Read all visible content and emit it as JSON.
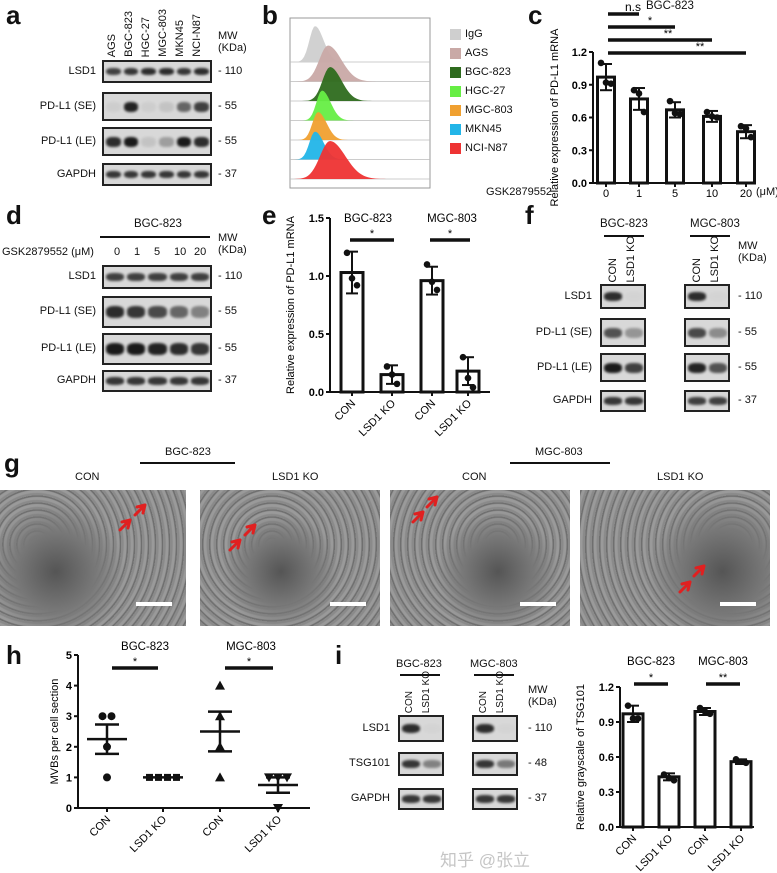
{
  "panel_labels": {
    "a": "a",
    "b": "b",
    "c": "c",
    "d": "d",
    "e": "e",
    "f": "f",
    "g": "g",
    "h": "h",
    "i": "i"
  },
  "panel_a": {
    "lanes": [
      "AGS",
      "BGC-823",
      "HGC-27",
      "MGC-803",
      "MKN45",
      "NCI-N87"
    ],
    "mw_header": "MW\n(KDa)",
    "rows": [
      {
        "label": "LSD1",
        "mw": "110",
        "intensity": [
          0.8,
          0.85,
          0.9,
          0.9,
          0.85,
          0.9
        ]
      },
      {
        "label": "PD-L1 (SE)",
        "mw": "55",
        "intensity": [
          0.05,
          0.95,
          0.05,
          0.1,
          0.6,
          0.8
        ]
      },
      {
        "label": "PD-L1 (LE)",
        "mw": "55",
        "intensity": [
          0.9,
          1,
          0.1,
          0.3,
          1,
          0.9
        ]
      },
      {
        "label": "GAPDH",
        "mw": "37",
        "intensity": [
          0.85,
          0.85,
          0.85,
          0.85,
          0.85,
          0.85
        ]
      }
    ]
  },
  "panel_b": {
    "legend": [
      {
        "label": "IgG",
        "color": "#cfcfcf"
      },
      {
        "label": "AGS",
        "color": "#c9a9a6"
      },
      {
        "label": "BGC-823",
        "color": "#2e6b1e"
      },
      {
        "label": "HGC-27",
        "color": "#66ee44"
      },
      {
        "label": "MGC-803",
        "color": "#f0a030"
      },
      {
        "label": "MKN45",
        "color": "#22b5e8"
      },
      {
        "label": "NCI-N87",
        "color": "#ee3333"
      }
    ]
  },
  "panel_c": {
    "title": "BGC-823",
    "ylabel": "Relative expression of\nPD-L1 mRNA",
    "xlabel": "GSK2879552",
    "unit": "(μM)"
  },
  "panel_d": {
    "title": "BGC-823",
    "treatment": "GSK2879552 (μM)",
    "lanes": [
      "0",
      "1",
      "5",
      "10",
      "20"
    ],
    "mw_header": "MW\n(KDa)",
    "rows": [
      {
        "label": "LSD1",
        "mw": "110",
        "intensity": [
          0.8,
          0.8,
          0.8,
          0.8,
          0.8
        ]
      },
      {
        "label": "PD-L1 (SE)",
        "mw": "55",
        "intensity": [
          0.9,
          0.85,
          0.75,
          0.6,
          0.45
        ]
      },
      {
        "label": "PD-L1 (LE)",
        "mw": "55",
        "intensity": [
          1,
          1,
          0.95,
          0.9,
          0.85
        ]
      },
      {
        "label": "GAPDH",
        "mw": "37",
        "intensity": [
          0.85,
          0.85,
          0.85,
          0.85,
          0.85
        ]
      }
    ]
  },
  "panel_f": {
    "groups": [
      "BGC-823",
      "MGC-803"
    ],
    "lanes": [
      "CON",
      "LSD1 KO"
    ],
    "mw_header": "MW\n(KDa)",
    "rows": [
      {
        "label": "LSD1",
        "mw": "110",
        "intensity": [
          0.9,
          0.02,
          0.9,
          0.02
        ]
      },
      {
        "label": "PD-L1 (SE)",
        "mw": "55",
        "intensity": [
          0.7,
          0.35,
          0.75,
          0.4
        ]
      },
      {
        "label": "PD-L1 (LE)",
        "mw": "55",
        "intensity": [
          1,
          0.8,
          0.95,
          0.7
        ]
      },
      {
        "label": "GAPDH",
        "mw": "37",
        "intensity": [
          0.85,
          0.85,
          0.8,
          0.8
        ]
      }
    ]
  },
  "panel_g": {
    "groups": [
      "BGC-823",
      "MGC-803"
    ],
    "images": [
      "CON",
      "LSD1 KO",
      "CON",
      "LSD1 KO"
    ]
  },
  "panel_i": {
    "groups": [
      "BGC-823",
      "MGC-803"
    ],
    "lanes": [
      "CON",
      "LSD1 KO"
    ],
    "mw_header": "MW\n(KDa)",
    "rows": [
      {
        "label": "LSD1",
        "mw": "110",
        "intensity": [
          0.9,
          0.02,
          0.9,
          0.02
        ]
      },
      {
        "label": "TSG101",
        "mw": "48",
        "intensity": [
          0.85,
          0.45,
          0.85,
          0.5
        ]
      },
      {
        "label": "GAPDH",
        "mw": "37",
        "intensity": [
          0.85,
          0.85,
          0.85,
          0.85
        ]
      }
    ]
  },
  "watermark": "知乎 @张立",
  "chart_data": [
    {
      "id": "c",
      "type": "bar",
      "title": "BGC-823",
      "xlabel": "GSK2879552 (μM)",
      "ylabel": "Relative expression of PD-L1 mRNA",
      "categories": [
        "0",
        "1",
        "5",
        "10",
        "20"
      ],
      "values": [
        0.97,
        0.77,
        0.67,
        0.61,
        0.47
      ],
      "errors": [
        0.12,
        0.1,
        0.07,
        0.05,
        0.06
      ],
      "points": [
        [
          1.1,
          0.92,
          0.91
        ],
        [
          0.85,
          0.82,
          0.65
        ],
        [
          0.75,
          0.64,
          0.63
        ],
        [
          0.65,
          0.61,
          0.6
        ],
        [
          0.52,
          0.5,
          0.42
        ]
      ],
      "ylim": [
        0,
        1.2
      ],
      "yticks": [
        "0.0",
        "0.3",
        "0.6",
        "0.9",
        "1.2"
      ],
      "significance": [
        {
          "from": 0,
          "to": 1,
          "label": "n.s"
        },
        {
          "from": 0,
          "to": 2,
          "label": "*"
        },
        {
          "from": 0,
          "to": 3,
          "label": "**"
        },
        {
          "from": 0,
          "to": 4,
          "label": "**"
        }
      ]
    },
    {
      "id": "e",
      "type": "bar",
      "ylabel": "Relative expression of PD-L1 mRNA",
      "groups": [
        "BGC-823",
        "MGC-803"
      ],
      "categories": [
        "CON",
        "LSD1 KO",
        "CON",
        "LSD1 KO"
      ],
      "values": [
        1.03,
        0.15,
        0.96,
        0.18
      ],
      "errors": [
        0.18,
        0.08,
        0.12,
        0.12
      ],
      "points": [
        [
          1.2,
          0.98,
          0.92
        ],
        [
          0.22,
          0.15,
          0.07
        ],
        [
          1.1,
          0.95,
          0.88
        ],
        [
          0.3,
          0.12,
          0.04
        ]
      ],
      "ylim": [
        0,
        1.5
      ],
      "yticks": [
        "0.0",
        "0.5",
        "1.0",
        "1.5"
      ],
      "significance": [
        {
          "from": 0,
          "to": 1,
          "label": "*"
        },
        {
          "from": 2,
          "to": 3,
          "label": "*"
        }
      ]
    },
    {
      "id": "h",
      "type": "scatter",
      "ylabel": "MVBs per cell section",
      "groups": [
        "BGC-823",
        "MGC-803"
      ],
      "categories": [
        "CON",
        "LSD1 KO",
        "CON",
        "LSD1 KO"
      ],
      "means": [
        2.25,
        1.0,
        2.5,
        0.75
      ],
      "sem": [
        0.48,
        0,
        0.65,
        0.25
      ],
      "points": [
        [
          3,
          3,
          2,
          1
        ],
        [
          1,
          1,
          1,
          1
        ],
        [
          4,
          3,
          2,
          1
        ],
        [
          1,
          1,
          1,
          0
        ]
      ],
      "markers": [
        "circle",
        "square",
        "triangle",
        "triangle-down"
      ],
      "ylim": [
        0,
        5
      ],
      "yticks": [
        "0",
        "1",
        "2",
        "3",
        "4",
        "5"
      ],
      "significance": [
        {
          "from": 0,
          "to": 1,
          "label": "*"
        },
        {
          "from": 2,
          "to": 3,
          "label": "*"
        }
      ]
    },
    {
      "id": "i",
      "type": "bar",
      "ylabel": "Relative grayscale of TSG101",
      "groups": [
        "BGC-823",
        "MGC-803"
      ],
      "categories": [
        "CON",
        "LSD1 KO",
        "CON",
        "LSD1 KO"
      ],
      "values": [
        0.97,
        0.43,
        0.99,
        0.56
      ],
      "errors": [
        0.07,
        0.03,
        0.03,
        0.02
      ],
      "points": [
        [
          1.04,
          0.93,
          0.93
        ],
        [
          0.45,
          0.42,
          0.4
        ],
        [
          1.02,
          0.99,
          0.97
        ],
        [
          0.58,
          0.56,
          0.55
        ]
      ],
      "ylim": [
        0,
        1.2
      ],
      "yticks": [
        "0.0",
        "0.3",
        "0.6",
        "0.9",
        "1.2"
      ],
      "significance": [
        {
          "from": 0,
          "to": 1,
          "label": "*"
        },
        {
          "from": 2,
          "to": 3,
          "label": "**"
        }
      ]
    }
  ]
}
